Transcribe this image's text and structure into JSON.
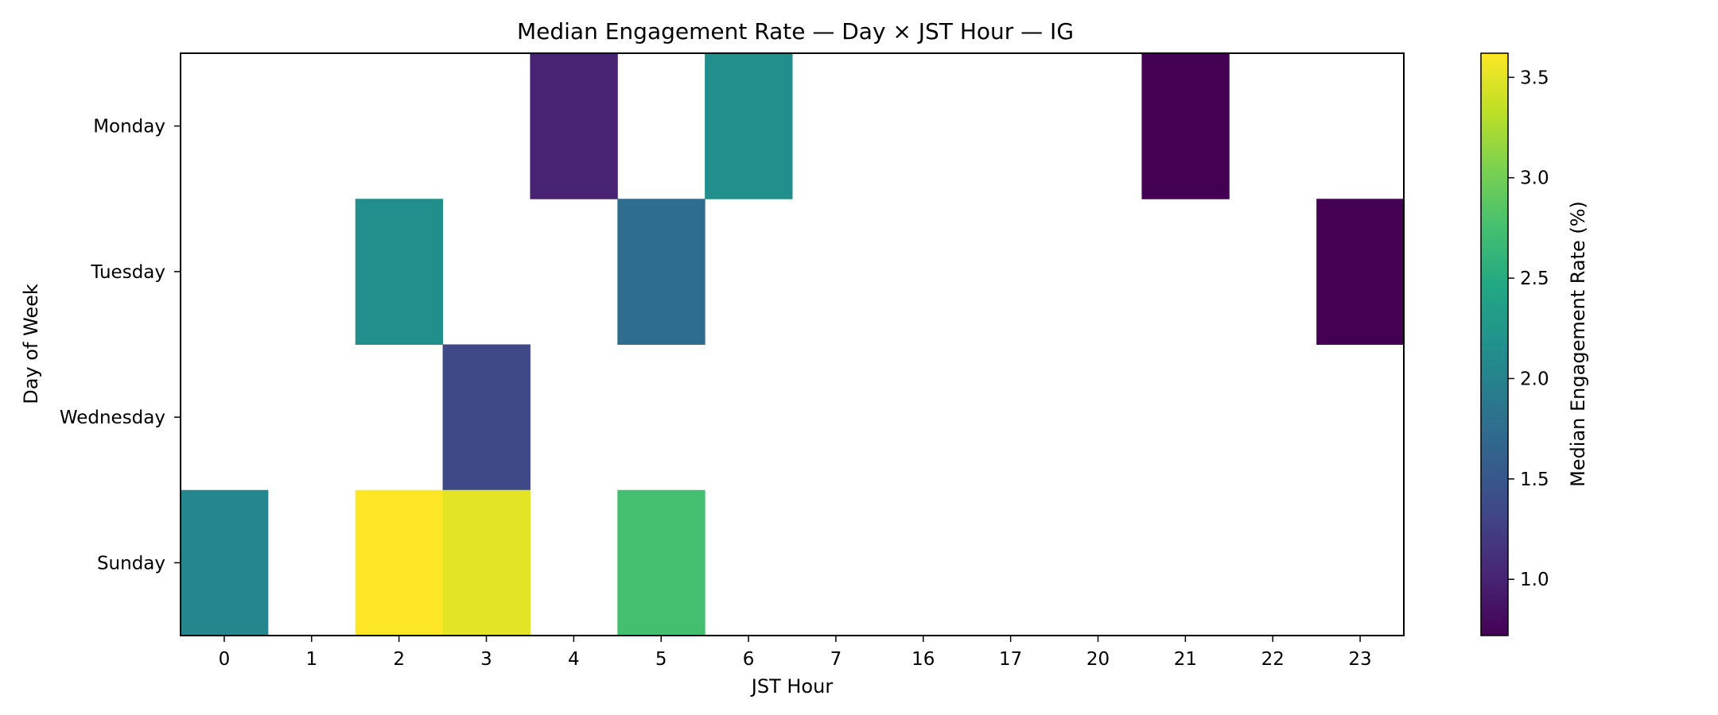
{
  "chart_data": {
    "type": "heatmap",
    "title": "Median Engagement Rate — Day × JST Hour — IG",
    "xlabel": "JST Hour",
    "ylabel": "Day of Week",
    "x_categories": [
      "0",
      "1",
      "2",
      "3",
      "4",
      "5",
      "6",
      "7",
      "16",
      "17",
      "20",
      "21",
      "22",
      "23"
    ],
    "y_categories": [
      "Monday",
      "Tuesday",
      "Wednesday",
      "Sunday"
    ],
    "values": [
      [
        null,
        null,
        null,
        null,
        1.0,
        null,
        2.15,
        null,
        null,
        null,
        null,
        0.72,
        null,
        null
      ],
      [
        null,
        null,
        2.15,
        null,
        null,
        1.75,
        null,
        null,
        null,
        null,
        null,
        null,
        null,
        0.72
      ],
      [
        null,
        null,
        null,
        1.35,
        null,
        null,
        null,
        null,
        null,
        null,
        null,
        null,
        null,
        null
      ],
      [
        2.05,
        null,
        3.62,
        3.5,
        null,
        2.75,
        null,
        null,
        null,
        null,
        null,
        null,
        null,
        null
      ]
    ],
    "colorbar": {
      "label": "Median Engagement Rate (%)",
      "range": [
        0.72,
        3.62
      ],
      "ticks": [
        "1.0",
        "1.5",
        "2.0",
        "2.5",
        "3.0",
        "3.5"
      ],
      "colormap": "viridis"
    },
    "grid": false
  }
}
